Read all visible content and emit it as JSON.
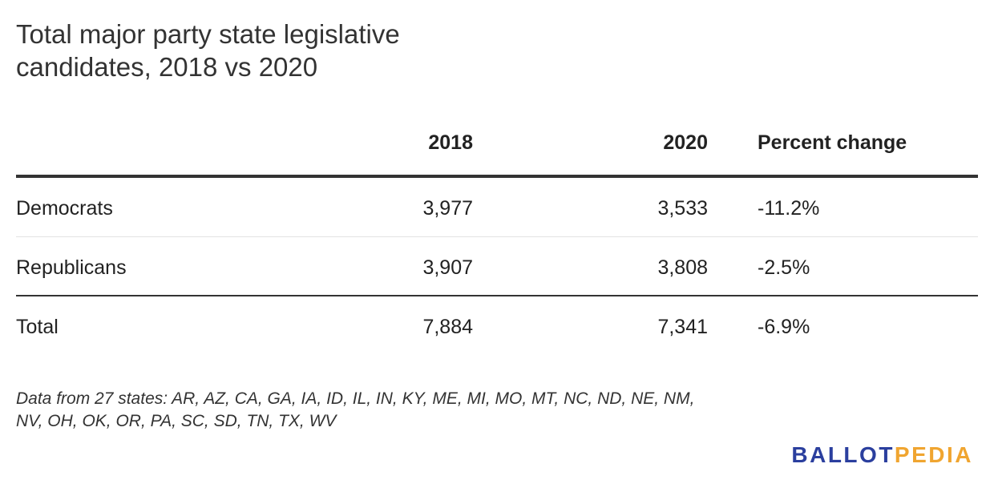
{
  "chart_data": {
    "type": "table",
    "title": "Total major party state legislative candidates, 2018 vs 2020",
    "columns": [
      "",
      "2018",
      "2020",
      "Percent change"
    ],
    "rows": [
      {
        "label": "Democrats",
        "v2018": "3,977",
        "v2020": "3,533",
        "pct": "-11.2%"
      },
      {
        "label": "Republicans",
        "v2018": "3,907",
        "v2020": "3,808",
        "pct": "-2.5%"
      },
      {
        "label": "Total",
        "v2018": "7,884",
        "v2020": "7,341",
        "pct": "-6.9%"
      }
    ],
    "note": "Data from 27 states: AR, AZ, CA, GA, IA, ID, IL, IN, KY, ME, MI, MO, MT, NC, ND, NE, NM, NV, OH, OK, OR, PA, SC, SD, TN, TX, WV"
  },
  "brand": {
    "part1": "BALLOT",
    "part2": "PEDIA",
    "color1": "#2b3f9e",
    "color2": "#f0a530"
  }
}
